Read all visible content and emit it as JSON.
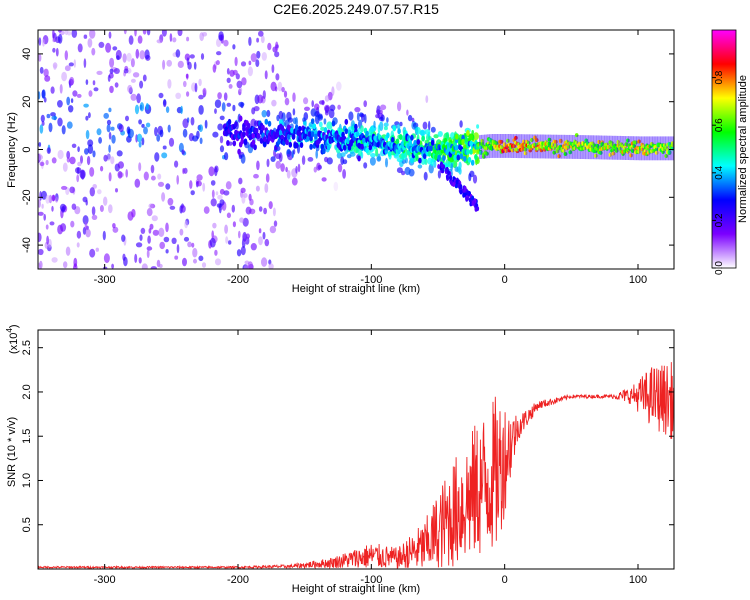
{
  "figure": {
    "title": "C2E6.2025.249.07.57.R15"
  },
  "chart_data": [
    {
      "type": "heatmap",
      "name": "spectrogram",
      "xlabel": "Height of straight line (km)",
      "ylabel": "Frequency (Hz)",
      "xlim": [
        -350,
        127
      ],
      "ylim": [
        -50,
        50
      ],
      "xticks": [
        -300,
        -200,
        -100,
        0,
        100
      ],
      "yticks": [
        -40,
        -20,
        0,
        20,
        40
      ],
      "xtick_labels": [
        "-300",
        "-200",
        "-100",
        "0",
        "100"
      ],
      "ytick_labels": [
        "-40",
        "-20",
        "0",
        "20",
        "40"
      ],
      "ridge": [
        {
          "x": -350,
          "f": 12,
          "amp": 0.15
        },
        {
          "x": -300,
          "f": 9,
          "amp": 0.2
        },
        {
          "x": -250,
          "f": 8,
          "amp": 0.22
        },
        {
          "x": -200,
          "f": 7,
          "amp": 0.3
        },
        {
          "x": -150,
          "f": 6,
          "amp": 0.38
        },
        {
          "x": -100,
          "f": 4,
          "amp": 0.45
        },
        {
          "x": -60,
          "f": 0,
          "amp": 0.5
        },
        {
          "x": -40,
          "f": 0,
          "amp": 0.55
        },
        {
          "x": -10,
          "f": 1.5,
          "amp": 0.7
        },
        {
          "x": 0,
          "f": 1.5,
          "amp": 0.9
        },
        {
          "x": 60,
          "f": 1.0,
          "amp": 0.75
        },
        {
          "x": 100,
          "f": 0.5,
          "amp": 0.8
        },
        {
          "x": 127,
          "f": 0.5,
          "amp": 0.7
        }
      ],
      "colorbar": {
        "label": "Normalized spectral amplitude",
        "range": [
          0,
          1
        ],
        "ticks": [
          0.0,
          0.2,
          0.4,
          0.6,
          0.8
        ],
        "tick_labels": [
          "0.0",
          "0.2",
          "0.4",
          "0.6",
          "0.8"
        ],
        "colormap": [
          "#ffffff",
          "#7b00ff",
          "#0000ff",
          "#00ffff",
          "#00ff00",
          "#ffff00",
          "#ff0000",
          "#ff00ff"
        ]
      }
    },
    {
      "type": "line",
      "name": "snr",
      "xlabel": "Height of straight line (km)",
      "ylabel": "SNR (10 * v/v)",
      "y_multiplier_label": "(x10",
      "y_multiplier_exp": "4",
      "y_multiplier_close": ")",
      "xlim": [
        -350,
        127
      ],
      "ylim": [
        0,
        2.7
      ],
      "xticks": [
        -300,
        -200,
        -100,
        0,
        100
      ],
      "yticks": [
        0.5,
        1.0,
        1.5,
        2.0,
        2.5
      ],
      "xtick_labels": [
        "-300",
        "-200",
        "-100",
        "0",
        "100"
      ],
      "ytick_labels": [
        "0.5",
        "1.0",
        "1.5",
        "2.0",
        "2.5"
      ],
      "color": "#ee2222",
      "envelope": [
        {
          "x": -350,
          "base": 0.02,
          "noise": 0.01
        },
        {
          "x": -200,
          "base": 0.02,
          "noise": 0.01
        },
        {
          "x": -160,
          "base": 0.03,
          "noise": 0.02
        },
        {
          "x": -130,
          "base": 0.07,
          "noise": 0.06
        },
        {
          "x": -100,
          "base": 0.15,
          "noise": 0.15
        },
        {
          "x": -80,
          "base": 0.12,
          "noise": 0.12
        },
        {
          "x": -60,
          "base": 0.25,
          "noise": 0.3
        },
        {
          "x": -40,
          "base": 0.6,
          "noise": 0.6
        },
        {
          "x": -20,
          "base": 0.9,
          "noise": 0.8
        },
        {
          "x": -5,
          "base": 1.1,
          "noise": 0.9
        },
        {
          "x": 10,
          "base": 1.6,
          "noise": 0.15
        },
        {
          "x": 25,
          "base": 1.85,
          "noise": 0.05
        },
        {
          "x": 50,
          "base": 1.95,
          "noise": 0.02
        },
        {
          "x": 80,
          "base": 1.95,
          "noise": 0.02
        },
        {
          "x": 95,
          "base": 1.96,
          "noise": 0.1
        },
        {
          "x": 110,
          "base": 1.95,
          "noise": 0.35
        },
        {
          "x": 127,
          "base": 1.9,
          "noise": 0.45
        }
      ]
    }
  ]
}
